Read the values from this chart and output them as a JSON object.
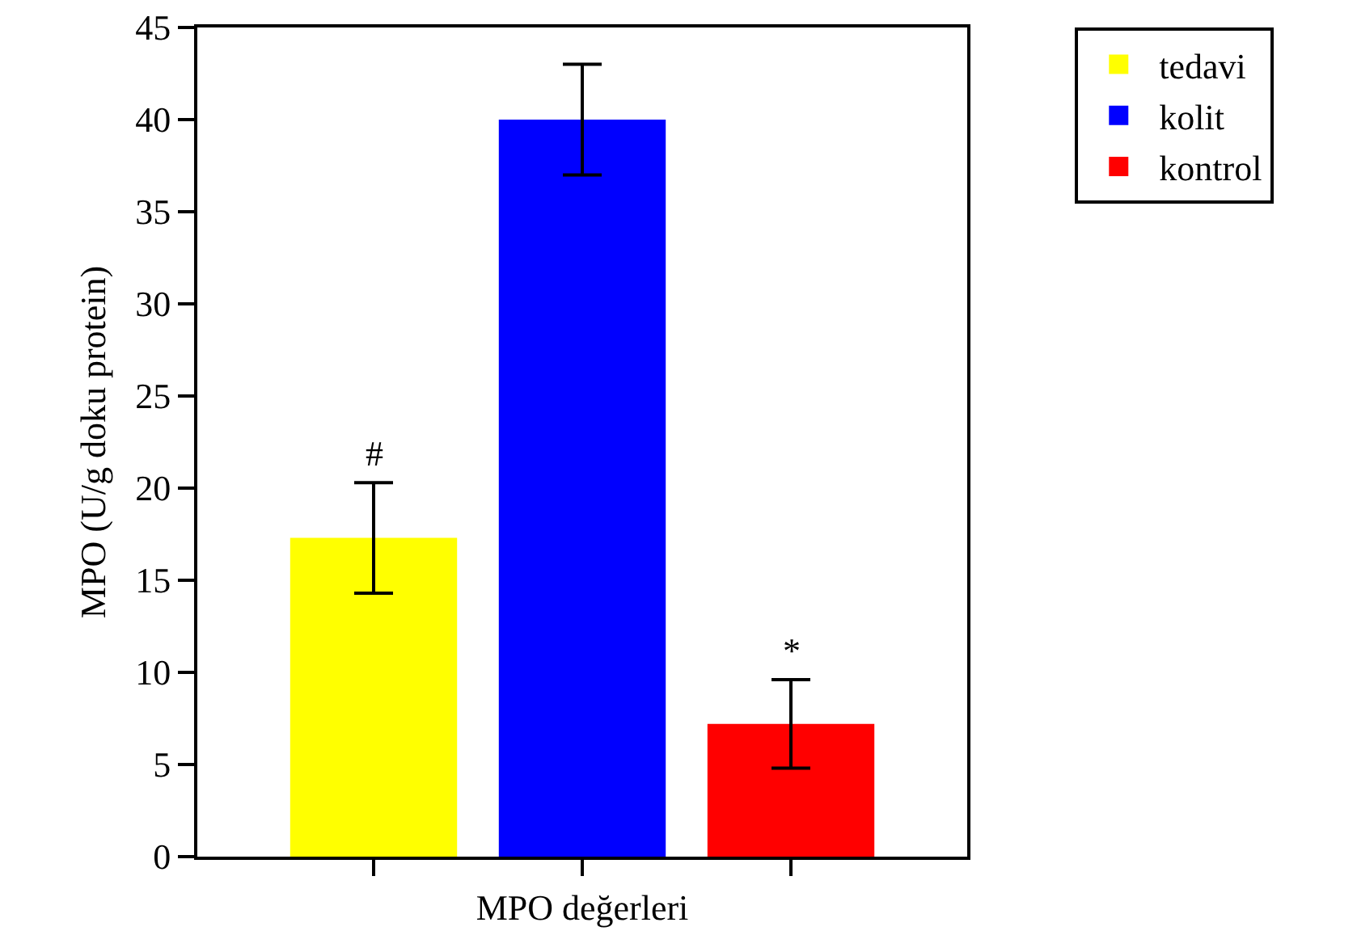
{
  "chart_data": {
    "type": "bar",
    "xlabel": "MPO değerleri",
    "ylabel": "MPO (U/g doku protein)",
    "categories": [
      null,
      null,
      null
    ],
    "series": [
      {
        "name": "tedavi",
        "color": "#ffff00",
        "values": [
          17.3,
          null,
          null
        ],
        "errors": [
          3,
          null,
          null
        ]
      },
      {
        "name": "kolit",
        "color": "#0000ff",
        "values": [
          null,
          40,
          null
        ],
        "errors": [
          null,
          3,
          null
        ]
      },
      {
        "name": "kontrol",
        "color": "#ff0000",
        "values": [
          null,
          null,
          7.2
        ],
        "errors": [
          null,
          null,
          2.4
        ]
      }
    ],
    "ylim": [
      0,
      45
    ],
    "yticks": [
      0,
      5,
      10,
      15,
      20,
      25,
      30,
      35,
      40,
      45
    ],
    "annotations": [
      "#",
      "*"
    ],
    "grid": false,
    "legend": "top right"
  }
}
